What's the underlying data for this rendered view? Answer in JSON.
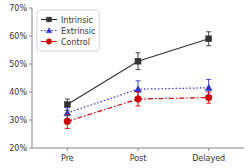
{
  "chart_data": {
    "type": "line",
    "categories": [
      "Pre",
      "Post",
      "Delayed"
    ],
    "series": [
      {
        "name": "Intrinsic",
        "color": "#333333",
        "marker": "square",
        "line_style": "solid",
        "values": [
          0.355,
          0.51,
          0.59
        ],
        "errors": [
          0.02,
          0.03,
          0.025
        ]
      },
      {
        "name": "Extrinsic",
        "color": "#3333cc",
        "marker": "triangle",
        "line_style": "dotted",
        "values": [
          0.325,
          0.41,
          0.415
        ],
        "errors": [
          0.02,
          0.03,
          0.03
        ]
      },
      {
        "name": "Control",
        "color": "#cc0000",
        "marker": "circle",
        "line_style": "dashdot",
        "values": [
          0.295,
          0.375,
          0.38
        ],
        "errors": [
          0.025,
          0.025,
          0.02
        ]
      }
    ],
    "ylim": [
      0.2,
      0.7
    ],
    "yticks": [
      {
        "value": 0.2,
        "label": "20%"
      },
      {
        "value": 0.3,
        "label": "30%"
      },
      {
        "value": 0.4,
        "label": "40%"
      },
      {
        "value": 0.5,
        "label": "50%"
      },
      {
        "value": 0.6,
        "label": "60%"
      },
      {
        "value": 0.7,
        "label": "70%"
      }
    ],
    "grid": false,
    "legend": "upper left"
  }
}
